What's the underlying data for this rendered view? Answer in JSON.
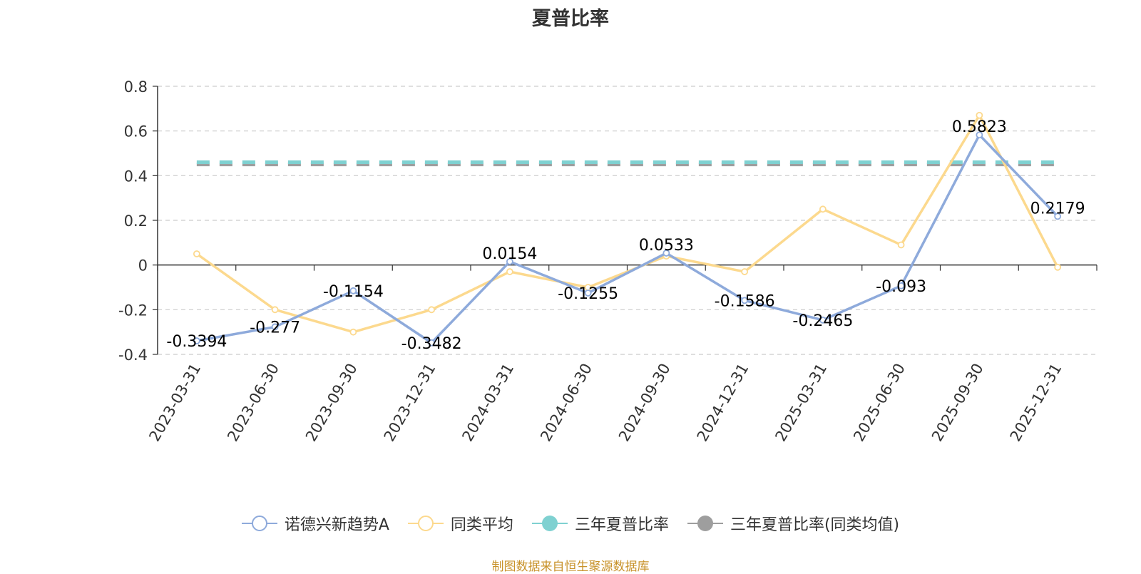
{
  "chart_data": {
    "type": "line",
    "title": "夏普比率",
    "categories": [
      "2023-03-31",
      "2023-06-30",
      "2023-09-30",
      "2023-12-31",
      "2024-03-31",
      "2024-06-30",
      "2024-09-30",
      "2024-12-31",
      "2025-03-31",
      "2025-06-30",
      "2025-09-30",
      "2025-12-31"
    ],
    "series": [
      {
        "name": "诺德兴新趋势A",
        "color": "#8eaadb",
        "style": "line-circle",
        "show_labels": true,
        "values": [
          -0.3394,
          -0.277,
          -0.1154,
          -0.3482,
          0.0154,
          -0.1255,
          0.0533,
          -0.1586,
          -0.2465,
          -0.093,
          0.5823,
          0.2179
        ],
        "labels": [
          "-0.3394",
          "-0.277",
          "-0.1154",
          "-0.3482",
          "0.0154",
          "-0.1255",
          "0.0533",
          "-0.1586",
          "-0.2465",
          "-0.093",
          "0.5823",
          "0.2179"
        ]
      },
      {
        "name": "同类平均",
        "color": "#fcd98e",
        "style": "line-circle",
        "show_labels": false,
        "values": [
          0.05,
          -0.2,
          -0.3,
          -0.2,
          -0.03,
          -0.1,
          0.04,
          -0.03,
          0.25,
          0.09,
          0.67,
          -0.01
        ]
      },
      {
        "name": "三年夏普比率",
        "color": "#7fd1d1",
        "style": "dashed-flat",
        "value": 0.46
      },
      {
        "name": "三年夏普比率(同类均值)",
        "color": "#9e9e9e",
        "style": "dashed-flat",
        "value": 0.45
      }
    ],
    "ylim": [
      -0.4,
      0.8
    ],
    "yticks": [
      "0.8",
      "0.6",
      "0.4",
      "0.2",
      "0",
      "-0.2",
      "-0.4"
    ],
    "grid": true,
    "legend_position": "bottom"
  },
  "footer": {
    "source": "制图数据来自恒生聚源数据库"
  }
}
